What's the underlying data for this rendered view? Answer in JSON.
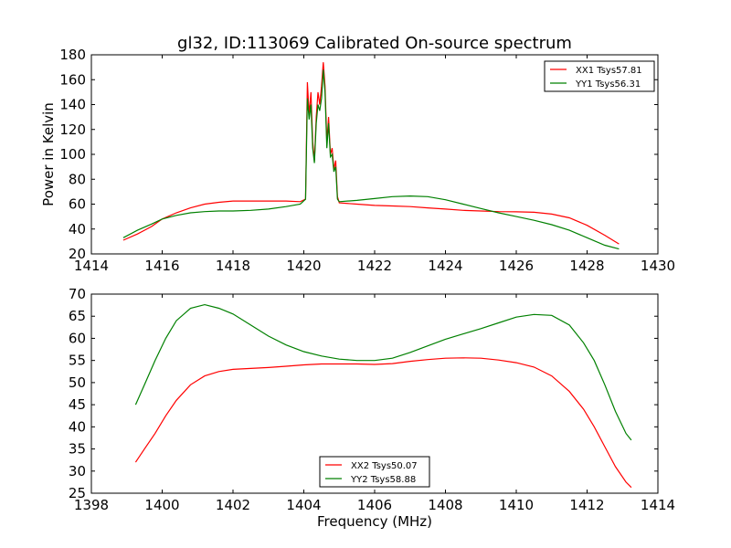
{
  "title": "gl32, ID:113069 Calibrated On-source spectrum",
  "chart_data": [
    {
      "type": "line",
      "ylabel": "Power in Kelvin",
      "xlabel": "",
      "xlim": [
        1414,
        1430
      ],
      "ylim": [
        20,
        180
      ],
      "xticks": [
        1414,
        1416,
        1418,
        1420,
        1422,
        1424,
        1426,
        1428,
        1430
      ],
      "yticks": [
        20,
        40,
        60,
        80,
        100,
        120,
        140,
        160,
        180
      ],
      "grid": false,
      "legend": "top-right",
      "series": [
        {
          "name": "XX1 Tsys57.81",
          "color": "#ff0000",
          "x": [
            1414.9,
            1415.3,
            1415.7,
            1416.0,
            1416.4,
            1416.8,
            1417.2,
            1417.6,
            1418.0,
            1418.5,
            1419.0,
            1419.5,
            1419.9,
            1420.05,
            1420.1,
            1420.15,
            1420.2,
            1420.25,
            1420.3,
            1420.35,
            1420.4,
            1420.45,
            1420.5,
            1420.55,
            1420.6,
            1420.65,
            1420.7,
            1420.75,
            1420.8,
            1420.85,
            1420.9,
            1420.95,
            1421.0,
            1421.5,
            1422.0,
            1422.5,
            1423.0,
            1423.5,
            1424.0,
            1424.5,
            1425.0,
            1425.5,
            1426.0,
            1426.5,
            1427.0,
            1427.5,
            1428.0,
            1428.5,
            1428.9
          ],
          "y": [
            31,
            36,
            42,
            48,
            53,
            57,
            60,
            61.5,
            62.5,
            62.5,
            62.5,
            62.5,
            62,
            64,
            158,
            132,
            150,
            110,
            95,
            130,
            150,
            140,
            155,
            174,
            155,
            110,
            130,
            100,
            105,
            88,
            95,
            66,
            61,
            60,
            59,
            58.5,
            58,
            57,
            56,
            55,
            54.5,
            54,
            53.8,
            53.5,
            52,
            49,
            43,
            35,
            28
          ]
        },
        {
          "name": "YY1 Tsys56.31",
          "color": "#008000",
          "x": [
            1414.9,
            1415.3,
            1415.7,
            1416.0,
            1416.4,
            1416.8,
            1417.2,
            1417.6,
            1418.0,
            1418.5,
            1419.0,
            1419.5,
            1419.9,
            1420.05,
            1420.1,
            1420.15,
            1420.2,
            1420.25,
            1420.3,
            1420.35,
            1420.4,
            1420.45,
            1420.5,
            1420.55,
            1420.6,
            1420.65,
            1420.7,
            1420.75,
            1420.8,
            1420.85,
            1420.9,
            1420.95,
            1421.0,
            1421.5,
            1422.0,
            1422.5,
            1423.0,
            1423.5,
            1424.0,
            1424.5,
            1425.0,
            1425.5,
            1426.0,
            1426.5,
            1427.0,
            1427.5,
            1428.0,
            1428.5,
            1428.9
          ],
          "y": [
            33,
            39,
            44,
            48,
            51,
            53,
            54,
            54.5,
            54.5,
            55,
            56,
            58,
            60,
            64,
            145,
            128,
            140,
            105,
            93,
            125,
            140,
            135,
            145,
            168,
            150,
            105,
            125,
            98,
            100,
            86,
            90,
            64,
            62,
            63,
            64.5,
            66,
            66.5,
            66,
            63.5,
            60,
            56.5,
            53,
            50,
            47,
            43.5,
            39,
            33,
            27,
            24
          ]
        }
      ]
    },
    {
      "type": "line",
      "ylabel": "",
      "xlabel": "Frequency (MHz)",
      "xlim": [
        1398,
        1414
      ],
      "ylim": [
        25,
        70
      ],
      "xticks": [
        1398,
        1400,
        1402,
        1404,
        1406,
        1408,
        1410,
        1412,
        1414
      ],
      "yticks": [
        25,
        30,
        35,
        40,
        45,
        50,
        55,
        60,
        65,
        70
      ],
      "grid": false,
      "legend": "bottom-center",
      "series": [
        {
          "name": "XX2 Tsys50.07",
          "color": "#ff0000",
          "x": [
            1399.25,
            1399.5,
            1399.8,
            1400.1,
            1400.4,
            1400.8,
            1401.2,
            1401.6,
            1402.0,
            1402.5,
            1403.0,
            1403.5,
            1404.0,
            1404.5,
            1405.0,
            1405.5,
            1406.0,
            1406.5,
            1407.0,
            1407.5,
            1408.0,
            1408.5,
            1409.0,
            1409.5,
            1410.0,
            1410.5,
            1411.0,
            1411.5,
            1411.9,
            1412.2,
            1412.5,
            1412.8,
            1413.1,
            1413.25
          ],
          "y": [
            32,
            35,
            38.5,
            42.5,
            46,
            49.5,
            51.5,
            52.5,
            53,
            53.2,
            53.4,
            53.7,
            54,
            54.2,
            54.2,
            54.2,
            54.1,
            54.3,
            54.8,
            55.2,
            55.5,
            55.6,
            55.5,
            55.1,
            54.5,
            53.5,
            51.5,
            48,
            44,
            40,
            35.5,
            31,
            27.5,
            26.3
          ]
        },
        {
          "name": "YY2 Tsys58.88",
          "color": "#008000",
          "x": [
            1399.25,
            1399.5,
            1399.8,
            1400.1,
            1400.4,
            1400.8,
            1401.2,
            1401.6,
            1402.0,
            1402.5,
            1403.0,
            1403.5,
            1404.0,
            1404.5,
            1405.0,
            1405.5,
            1406.0,
            1406.5,
            1407.0,
            1407.5,
            1408.0,
            1408.5,
            1409.0,
            1409.5,
            1410.0,
            1410.5,
            1411.0,
            1411.5,
            1411.9,
            1412.2,
            1412.5,
            1412.8,
            1413.1,
            1413.25
          ],
          "y": [
            45,
            49.5,
            55,
            60,
            64,
            66.8,
            67.6,
            66.8,
            65.5,
            63,
            60.5,
            58.5,
            57,
            56,
            55.3,
            55,
            55,
            55.5,
            56.8,
            58.3,
            59.8,
            61,
            62.2,
            63.5,
            64.8,
            65.4,
            65.2,
            63,
            59,
            55,
            49.5,
            43.5,
            38.5,
            37
          ]
        }
      ]
    }
  ]
}
